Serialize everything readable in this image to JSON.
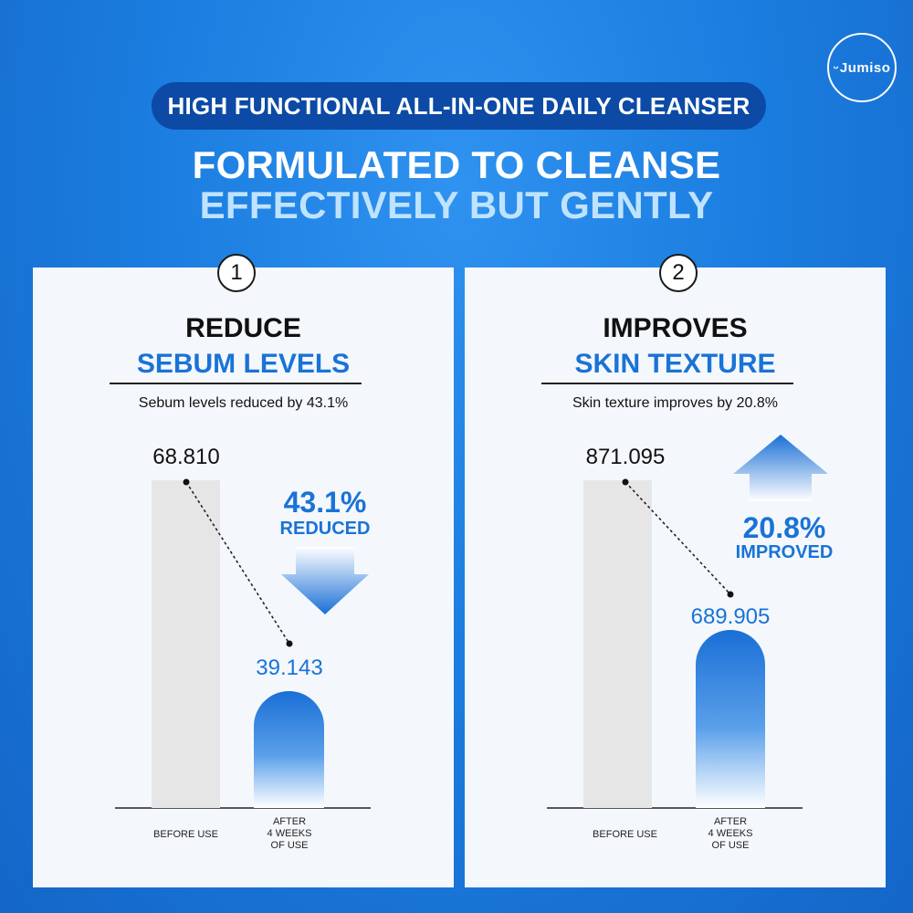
{
  "brand": {
    "logo_text": "Jumiso"
  },
  "header": {
    "pill_text": "HIGH FUNCTIONAL ALL-IN-ONE DAILY CLEANSER",
    "headline_line1": "FORMULATED TO CLEANSE",
    "headline_line2": "EFFECTIVELY BUT GENTLY"
  },
  "colors": {
    "background": "#1a7de0",
    "pill": "#0c4aa6",
    "accent_blue": "#1a73d6",
    "headline_light": "#bfe3ff",
    "before_bar": "#e6e6e6",
    "panel": "#f4f8fc"
  },
  "panels": [
    {
      "number": "1",
      "title_line1": "REDUCE",
      "title_line2": "SEBUM LEVELS",
      "subtitle": "Sebum levels reduced by 43.1%",
      "change_value": "43.1%",
      "change_word": "REDUCED",
      "arrow_direction": "down",
      "before_label": "68.810",
      "after_label": "39.143",
      "category_before": "BEFORE USE",
      "category_after_lines": [
        "AFTER",
        "4 WEEKS",
        "OF USE"
      ]
    },
    {
      "number": "2",
      "title_line1": "IMPROVES",
      "title_line2": "SKIN TEXTURE",
      "subtitle": "Skin texture improves by 20.8%",
      "change_value": "20.8%",
      "change_word": "IMPROVED",
      "arrow_direction": "up",
      "before_label": "871.095",
      "after_label": "689.905",
      "category_before": "BEFORE USE",
      "category_after_lines": [
        "AFTER",
        "4 WEEKS",
        "OF USE"
      ]
    }
  ],
  "chart_data": [
    {
      "type": "bar",
      "title": "REDUCE SEBUM LEVELS",
      "categories": [
        "BEFORE USE",
        "AFTER 4 WEEKS OF USE"
      ],
      "values": [
        68.81,
        39.143
      ],
      "ylim": [
        0,
        68.81
      ],
      "grid": false
    },
    {
      "type": "bar",
      "title": "IMPROVES SKIN TEXTURE",
      "categories": [
        "BEFORE USE",
        "AFTER 4 WEEKS OF USE"
      ],
      "values": [
        871.095,
        689.905
      ],
      "ylim": [
        0,
        871.095
      ],
      "grid": false
    }
  ]
}
